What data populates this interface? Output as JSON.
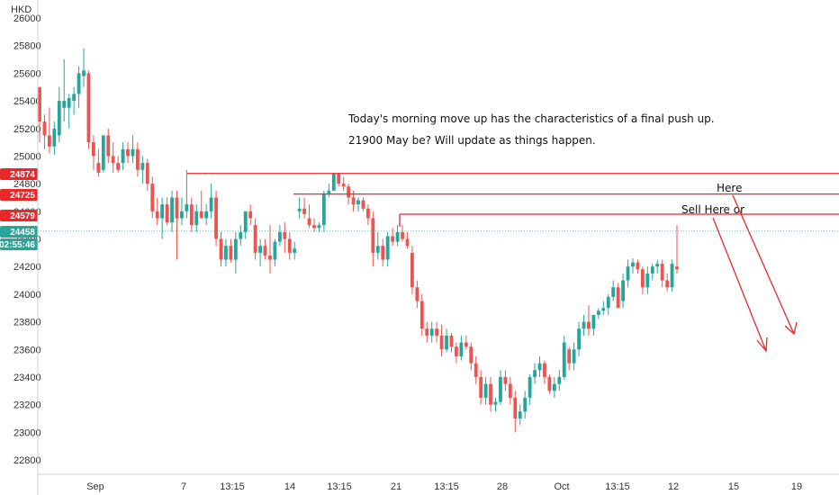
{
  "chart_data": {
    "type": "candlestick",
    "currency": "HKD",
    "ylim": [
      22650,
      26050
    ],
    "y_ticks": [
      22800,
      23000,
      23200,
      23400,
      23600,
      23800,
      24000,
      24200,
      24400,
      24600,
      24800,
      25000,
      25200,
      25400,
      25600,
      25800,
      26000
    ],
    "x_tick_labels": [
      "Sep",
      "7",
      "13:15",
      "14",
      "13:15",
      "21",
      "13:15",
      "28",
      "Oct",
      "13:15",
      "12",
      "15",
      "19"
    ],
    "candles": [
      {
        "open": 25500,
        "high": 25500,
        "low": 25100,
        "close": 25250
      },
      {
        "open": 25250,
        "high": 25300,
        "low": 25050,
        "close": 25150
      },
      {
        "open": 25150,
        "high": 25350,
        "low": 25020,
        "close": 25070
      },
      {
        "open": 25070,
        "high": 25250,
        "low": 25010,
        "close": 25200
      },
      {
        "open": 25150,
        "high": 25500,
        "low": 25100,
        "close": 25400
      },
      {
        "open": 25350,
        "high": 25700,
        "low": 25250,
        "close": 25400
      },
      {
        "open": 25350,
        "high": 25450,
        "low": 25200,
        "close": 25420
      },
      {
        "open": 25400,
        "high": 25500,
        "low": 25300,
        "close": 25450
      },
      {
        "open": 25450,
        "high": 25650,
        "low": 25350,
        "close": 25600
      },
      {
        "open": 25580,
        "high": 25780,
        "low": 25500,
        "close": 25620
      },
      {
        "open": 25600,
        "high": 25620,
        "low": 25050,
        "close": 25100
      },
      {
        "open": 25100,
        "high": 25150,
        "low": 24900,
        "close": 25000
      },
      {
        "open": 24950,
        "high": 25050,
        "low": 24850,
        "close": 24880
      },
      {
        "open": 24900,
        "high": 25150,
        "low": 24880,
        "close": 25150
      },
      {
        "open": 25150,
        "high": 25200,
        "low": 24950,
        "close": 25000
      },
      {
        "open": 25000,
        "high": 25100,
        "low": 24880,
        "close": 24950
      },
      {
        "open": 24950,
        "high": 25000,
        "low": 24880,
        "close": 24900
      },
      {
        "open": 24950,
        "high": 25100,
        "low": 24900,
        "close": 25050
      },
      {
        "open": 25050,
        "high": 25100,
        "low": 24950,
        "close": 25000
      },
      {
        "open": 25000,
        "high": 25150,
        "low": 24950,
        "close": 25050
      },
      {
        "open": 25050,
        "high": 25100,
        "low": 24850,
        "close": 24900
      },
      {
        "open": 24900,
        "high": 25000,
        "low": 24800,
        "close": 24950
      },
      {
        "open": 24950,
        "high": 24980,
        "low": 24750,
        "close": 24800
      },
      {
        "open": 24800,
        "high": 24850,
        "low": 24550,
        "close": 24600
      },
      {
        "open": 24600,
        "high": 24700,
        "low": 24500,
        "close": 24550
      },
      {
        "open": 24550,
        "high": 24700,
        "low": 24400,
        "close": 24650
      },
      {
        "open": 24650,
        "high": 24700,
        "low": 24500,
        "close": 24520
      },
      {
        "open": 24520,
        "high": 24750,
        "low": 24450,
        "close": 24700
      },
      {
        "open": 24700,
        "high": 24750,
        "low": 24250,
        "close": 24550
      },
      {
        "open": 24550,
        "high": 24700,
        "low": 24500,
        "close": 24600
      },
      {
        "open": 24600,
        "high": 24900,
        "low": 24550,
        "close": 24650
      },
      {
        "open": 24650,
        "high": 24700,
        "low": 24450,
        "close": 24500
      },
      {
        "open": 24500,
        "high": 24650,
        "low": 24450,
        "close": 24600
      },
      {
        "open": 24600,
        "high": 24750,
        "low": 24550,
        "close": 24550
      },
      {
        "open": 24550,
        "high": 24650,
        "low": 24500,
        "close": 24600
      },
      {
        "open": 24600,
        "high": 24800,
        "low": 24550,
        "close": 24700
      },
      {
        "open": 24700,
        "high": 24750,
        "low": 24350,
        "close": 24400
      },
      {
        "open": 24400,
        "high": 24450,
        "low": 24200,
        "close": 24250
      },
      {
        "open": 24250,
        "high": 24400,
        "low": 24200,
        "close": 24350
      },
      {
        "open": 24350,
        "high": 24400,
        "low": 24230,
        "close": 24250
      },
      {
        "open": 24250,
        "high": 24450,
        "low": 24150,
        "close": 24400
      },
      {
        "open": 24400,
        "high": 24500,
        "low": 24350,
        "close": 24450
      },
      {
        "open": 24450,
        "high": 24600,
        "low": 24400,
        "close": 24600
      },
      {
        "open": 24600,
        "high": 24650,
        "low": 24500,
        "close": 24550
      },
      {
        "open": 24500,
        "high": 24550,
        "low": 24250,
        "close": 24300
      },
      {
        "open": 24300,
        "high": 24400,
        "low": 24200,
        "close": 24350
      },
      {
        "open": 24350,
        "high": 24400,
        "low": 24250,
        "close": 24280
      },
      {
        "open": 24280,
        "high": 24500,
        "low": 24150,
        "close": 24250
      },
      {
        "open": 24250,
        "high": 24400,
        "low": 24200,
        "close": 24380
      },
      {
        "open": 24380,
        "high": 24500,
        "low": 24350,
        "close": 24450
      },
      {
        "open": 24450,
        "high": 24520,
        "low": 24300,
        "close": 24400
      },
      {
        "open": 24400,
        "high": 24450,
        "low": 24250,
        "close": 24300
      },
      {
        "open": 24300,
        "high": 24380,
        "low": 24250,
        "close": 24330
      },
      {
        "open": 24600,
        "high": 24700,
        "low": 24550,
        "close": 24620
      },
      {
        "open": 24620,
        "high": 24700,
        "low": 24550,
        "close": 24580
      },
      {
        "open": 24550,
        "high": 24650,
        "low": 24480,
        "close": 24500
      },
      {
        "open": 24500,
        "high": 24550,
        "low": 24450,
        "close": 24480
      },
      {
        "open": 24480,
        "high": 24520,
        "low": 24450,
        "close": 24500
      },
      {
        "open": 24500,
        "high": 24750,
        "low": 24450,
        "close": 24730
      },
      {
        "open": 24730,
        "high": 24800,
        "low": 24700,
        "close": 24750
      },
      {
        "open": 24750,
        "high": 24880,
        "low": 24750,
        "close": 24870
      },
      {
        "open": 24870,
        "high": 24880,
        "low": 24780,
        "close": 24800
      },
      {
        "open": 24800,
        "high": 24850,
        "low": 24750,
        "close": 24780
      },
      {
        "open": 24780,
        "high": 24800,
        "low": 24650,
        "close": 24700
      },
      {
        "open": 24700,
        "high": 24750,
        "low": 24600,
        "close": 24650
      },
      {
        "open": 24650,
        "high": 24700,
        "low": 24600,
        "close": 24680
      },
      {
        "open": 24680,
        "high": 24700,
        "low": 24600,
        "close": 24620
      },
      {
        "open": 24620,
        "high": 24650,
        "low": 24500,
        "close": 24550
      },
      {
        "open": 24550,
        "high": 24600,
        "low": 24200,
        "close": 24300
      },
      {
        "open": 24300,
        "high": 24450,
        "low": 24250,
        "close": 24350
      },
      {
        "open": 24350,
        "high": 24400,
        "low": 24200,
        "close": 24250
      },
      {
        "open": 24250,
        "high": 24450,
        "low": 24200,
        "close": 24420
      },
      {
        "open": 24420,
        "high": 24480,
        "low": 24350,
        "close": 24380
      },
      {
        "open": 24380,
        "high": 24500,
        "low": 24350,
        "close": 24450
      },
      {
        "open": 24450,
        "high": 24500,
        "low": 24380,
        "close": 24400
      },
      {
        "open": 24400,
        "high": 24450,
        "low": 24330,
        "close": 24350
      },
      {
        "open": 24300,
        "high": 24350,
        "low": 24000,
        "close": 24050
      },
      {
        "open": 24050,
        "high": 24100,
        "low": 23900,
        "close": 23950
      },
      {
        "open": 23950,
        "high": 24000,
        "low": 23700,
        "close": 23750
      },
      {
        "open": 23750,
        "high": 23800,
        "low": 23650,
        "close": 23700
      },
      {
        "open": 23700,
        "high": 23800,
        "low": 23650,
        "close": 23750
      },
      {
        "open": 23750,
        "high": 23800,
        "low": 23650,
        "close": 23700
      },
      {
        "open": 23700,
        "high": 23780,
        "low": 23550,
        "close": 23600
      },
      {
        "open": 23600,
        "high": 23750,
        "low": 23580,
        "close": 23700
      },
      {
        "open": 23700,
        "high": 23720,
        "low": 23580,
        "close": 23620
      },
      {
        "open": 23620,
        "high": 23650,
        "low": 23500,
        "close": 23550
      },
      {
        "open": 23550,
        "high": 23700,
        "low": 23520,
        "close": 23650
      },
      {
        "open": 23650,
        "high": 23700,
        "low": 23600,
        "close": 23620
      },
      {
        "open": 23620,
        "high": 23650,
        "low": 23450,
        "close": 23500
      },
      {
        "open": 23500,
        "high": 23550,
        "low": 23350,
        "close": 23400
      },
      {
        "open": 23400,
        "high": 23450,
        "low": 23200,
        "close": 23250
      },
      {
        "open": 23250,
        "high": 23400,
        "low": 23200,
        "close": 23350
      },
      {
        "open": 23350,
        "high": 23400,
        "low": 23150,
        "close": 23200
      },
      {
        "open": 23200,
        "high": 23250,
        "low": 23150,
        "close": 23220
      },
      {
        "open": 23220,
        "high": 23450,
        "low": 23200,
        "close": 23400
      },
      {
        "open": 23400,
        "high": 23450,
        "low": 23300,
        "close": 23350
      },
      {
        "open": 23350,
        "high": 23400,
        "low": 23200,
        "close": 23250
      },
      {
        "open": 23250,
        "high": 23300,
        "low": 23000,
        "close": 23100
      },
      {
        "open": 23100,
        "high": 23200,
        "low": 23050,
        "close": 23150
      },
      {
        "open": 23150,
        "high": 23300,
        "low": 23100,
        "close": 23250
      },
      {
        "open": 23250,
        "high": 23420,
        "low": 23200,
        "close": 23400
      },
      {
        "open": 23400,
        "high": 23500,
        "low": 23350,
        "close": 23450
      },
      {
        "open": 23450,
        "high": 23550,
        "low": 23400,
        "close": 23500
      },
      {
        "open": 23500,
        "high": 23520,
        "low": 23350,
        "close": 23400
      },
      {
        "open": 23400,
        "high": 23420,
        "low": 23280,
        "close": 23300
      },
      {
        "open": 23300,
        "high": 23400,
        "low": 23250,
        "close": 23350
      },
      {
        "open": 23350,
        "high": 23450,
        "low": 23300,
        "close": 23400
      },
      {
        "open": 23400,
        "high": 23700,
        "low": 23380,
        "close": 23650
      },
      {
        "open": 23600,
        "high": 23620,
        "low": 23450,
        "close": 23500
      },
      {
        "open": 23500,
        "high": 23650,
        "low": 23450,
        "close": 23600
      },
      {
        "open": 23600,
        "high": 23800,
        "low": 23550,
        "close": 23750
      },
      {
        "open": 23750,
        "high": 23850,
        "low": 23700,
        "close": 23800
      },
      {
        "open": 23800,
        "high": 23920,
        "low": 23700,
        "close": 23750
      },
      {
        "open": 23750,
        "high": 23850,
        "low": 23700,
        "close": 23850
      },
      {
        "open": 23850,
        "high": 23900,
        "low": 23820,
        "close": 23880
      },
      {
        "open": 23880,
        "high": 23950,
        "low": 23850,
        "close": 23900
      },
      {
        "open": 23900,
        "high": 24000,
        "low": 23850,
        "close": 23980
      },
      {
        "open": 23980,
        "high": 24100,
        "low": 23950,
        "close": 24050
      },
      {
        "open": 24050,
        "high": 24080,
        "low": 23900,
        "close": 23900
      },
      {
        "open": 23950,
        "high": 24150,
        "low": 23900,
        "close": 24100
      },
      {
        "open": 24100,
        "high": 24250,
        "low": 24050,
        "close": 24200
      },
      {
        "open": 24200,
        "high": 24260,
        "low": 24150,
        "close": 24230
      },
      {
        "open": 24230,
        "high": 24250,
        "low": 24150,
        "close": 24180
      },
      {
        "open": 24180,
        "high": 24200,
        "low": 24000,
        "close": 24050
      },
      {
        "open": 24050,
        "high": 24200,
        "low": 24000,
        "close": 24150
      },
      {
        "open": 24150,
        "high": 24220,
        "low": 24100,
        "close": 24200
      },
      {
        "open": 24200,
        "high": 24250,
        "low": 24150,
        "close": 24220
      },
      {
        "open": 24220,
        "high": 24250,
        "low": 24050,
        "close": 24100
      },
      {
        "open": 24100,
        "high": 24150,
        "low": 24020,
        "close": 24050
      },
      {
        "open": 24050,
        "high": 24250,
        "low": 24020,
        "close": 24220
      },
      {
        "open": 24200,
        "high": 24500,
        "low": 24150,
        "close": 24180
      }
    ],
    "horizontal_levels": [
      24874,
      24725,
      24579
    ],
    "price_tags": [
      {
        "label": "24874",
        "color": "#e8282b"
      },
      {
        "label": "24725",
        "color": "#e8282b"
      },
      {
        "label": "24579",
        "color": "#e8282b"
      },
      {
        "label": "24458",
        "color": "#26a69a"
      },
      {
        "label": "02:55:46",
        "color": "#26a69a"
      }
    ],
    "annotations": [
      "Today's morning move up has the characteristics of a final push up.",
      "21900 May be? Will update as things happen.",
      "Here",
      "Sell Here or"
    ],
    "colors": {
      "up": "#26a69a",
      "down": "#ef5350",
      "level_line": "#e8282b",
      "arrow": "#e8282b"
    }
  }
}
